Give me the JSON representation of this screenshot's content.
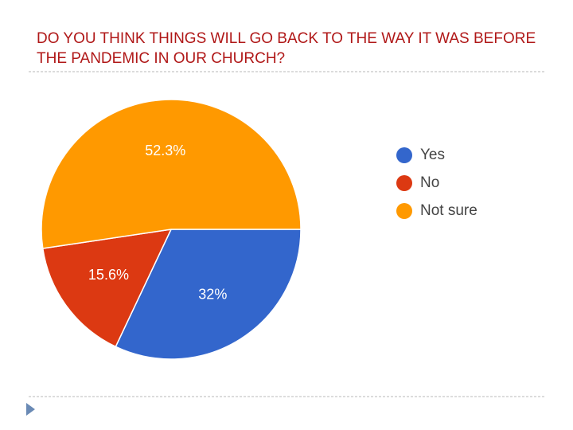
{
  "chart_data": {
    "type": "pie",
    "title": "DO YOU THINK THINGS WILL GO BACK TO THE WAY IT WAS BEFORE THE PANDEMIC IN OUR CHURCH?",
    "categories": [
      "Yes",
      "No",
      "Not sure"
    ],
    "values": [
      32,
      15.6,
      52.3
    ],
    "value_labels": [
      "32%",
      "15.6%",
      "52.3%"
    ],
    "colors": [
      "#3366cc",
      "#dc3912",
      "#ff9900"
    ],
    "legend": "right"
  }
}
